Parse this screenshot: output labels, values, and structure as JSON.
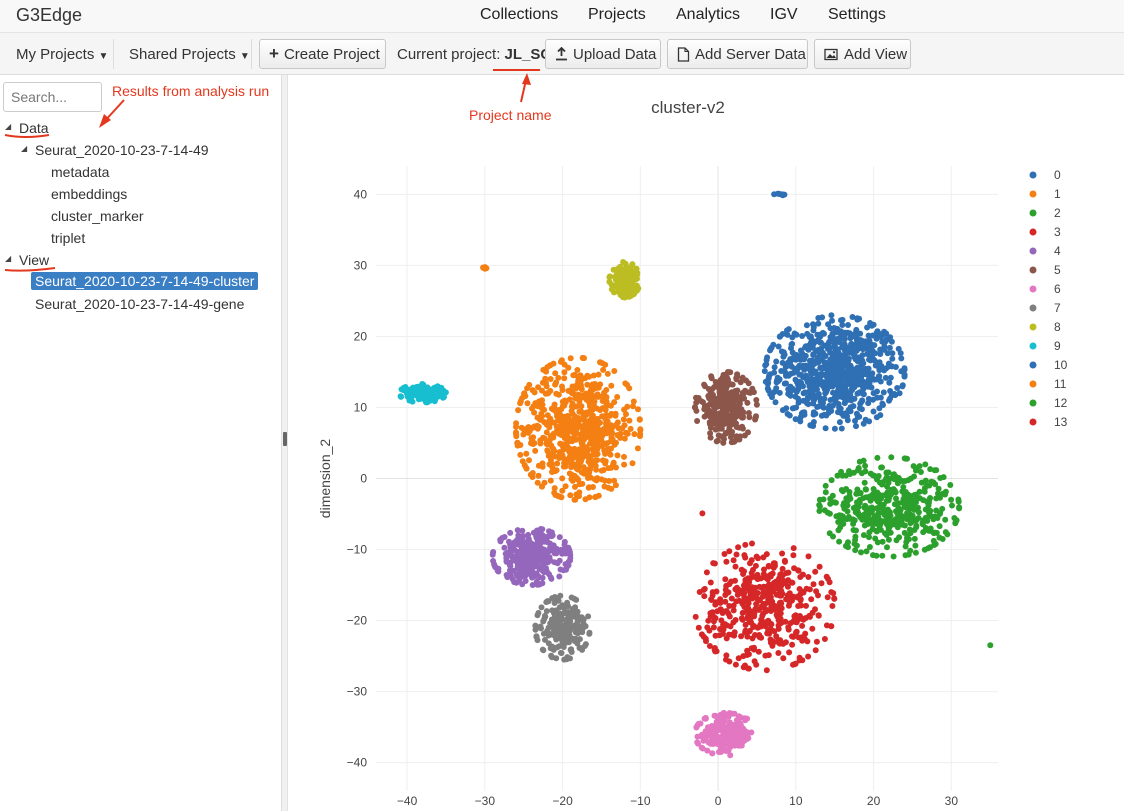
{
  "app": {
    "brand": "G3Edge"
  },
  "nav": {
    "items": [
      "Collections",
      "Projects",
      "Analytics",
      "IGV",
      "Settings"
    ]
  },
  "toolbar": {
    "my_projects": "My Projects",
    "shared_projects": "Shared Projects",
    "create_project": "Create Project",
    "current_project_label": "Current project:",
    "current_project_value": "JL_SC",
    "upload_data": "Upload Data",
    "add_server_data": "Add Server Data",
    "add_view": "Add View"
  },
  "sidebar": {
    "search_placeholder": "Search...",
    "tree": {
      "data_label": "Data",
      "run": "Seurat_2020-10-23-7-14-49",
      "run_children": [
        "metadata",
        "embeddings",
        "cluster_marker",
        "triplet"
      ],
      "view_label": "View",
      "views": [
        "Seurat_2020-10-23-7-14-49-cluster",
        "Seurat_2020-10-23-7-14-49-gene"
      ]
    }
  },
  "annotations": {
    "results": "Results from analysis run",
    "project": "Project name"
  },
  "colors": {
    "annotation": "#e3381e",
    "selected": "#3a7ec4"
  },
  "icons": [
    "plus-icon",
    "upload-icon",
    "file-add-icon",
    "image-add-icon",
    "caret-down-icon"
  ],
  "chart_data": {
    "type": "scatter",
    "title": "cluster-v2",
    "xlabel": "",
    "ylabel": "dimension_2",
    "xlim": [
      -44,
      36
    ],
    "ylim": [
      -44,
      44
    ],
    "xticks": [
      -40,
      -30,
      -20,
      -10,
      0,
      10,
      20,
      30
    ],
    "yticks": [
      -40,
      -30,
      -20,
      -10,
      0,
      10,
      20,
      30,
      40
    ],
    "grid": true,
    "legend_position": "right",
    "series": [
      {
        "name": "0",
        "color": "#2f6fb3",
        "center": [
          15,
          15
        ],
        "spread": [
          9,
          8
        ],
        "count": 750
      },
      {
        "name": "1",
        "color": "#f47f12",
        "center": [
          -18,
          7
        ],
        "spread": [
          8,
          10
        ],
        "count": 650
      },
      {
        "name": "2",
        "color": "#2ca02c",
        "center": [
          22,
          -4
        ],
        "spread": [
          9,
          7
        ],
        "count": 450
      },
      {
        "name": "3",
        "color": "#d62728",
        "center": [
          6,
          -18
        ],
        "spread": [
          9,
          9
        ],
        "count": 450
      },
      {
        "name": "4",
        "color": "#9467bd",
        "center": [
          -24,
          -11
        ],
        "spread": [
          5,
          4
        ],
        "count": 320
      },
      {
        "name": "5",
        "color": "#8c564b",
        "center": [
          1,
          10
        ],
        "spread": [
          4,
          5
        ],
        "count": 280
      },
      {
        "name": "6",
        "color": "#e377c2",
        "center": [
          1,
          -36
        ],
        "spread": [
          4,
          3
        ],
        "count": 200
      },
      {
        "name": "7",
        "color": "#7f7f7f",
        "center": [
          -20,
          -21
        ],
        "spread": [
          3.5,
          4.5
        ],
        "count": 200
      },
      {
        "name": "8",
        "color": "#bcbd22",
        "center": [
          -12,
          28
        ],
        "spread": [
          2,
          2.5
        ],
        "count": 160
      },
      {
        "name": "9",
        "color": "#17becf",
        "center": [
          -38,
          12
        ],
        "spread": [
          3,
          1.3
        ],
        "count": 110
      },
      {
        "name": "10",
        "color": "#2f6fb3",
        "center": [
          8,
          40
        ],
        "spread": [
          0.8,
          0.3
        ],
        "count": 8
      },
      {
        "name": "11",
        "color": "#f47f12",
        "center": [
          -30,
          29.5
        ],
        "spread": [
          0.5,
          0.6
        ],
        "count": 5
      },
      {
        "name": "12",
        "color": "#2ca02c",
        "center": [
          35,
          -23.5
        ],
        "spread": [
          0.1,
          0.1
        ],
        "count": 1
      },
      {
        "name": "13",
        "color": "#d62728",
        "center": [
          -2,
          -5
        ],
        "spread": [
          0.1,
          0.1
        ],
        "count": 1
      }
    ]
  }
}
